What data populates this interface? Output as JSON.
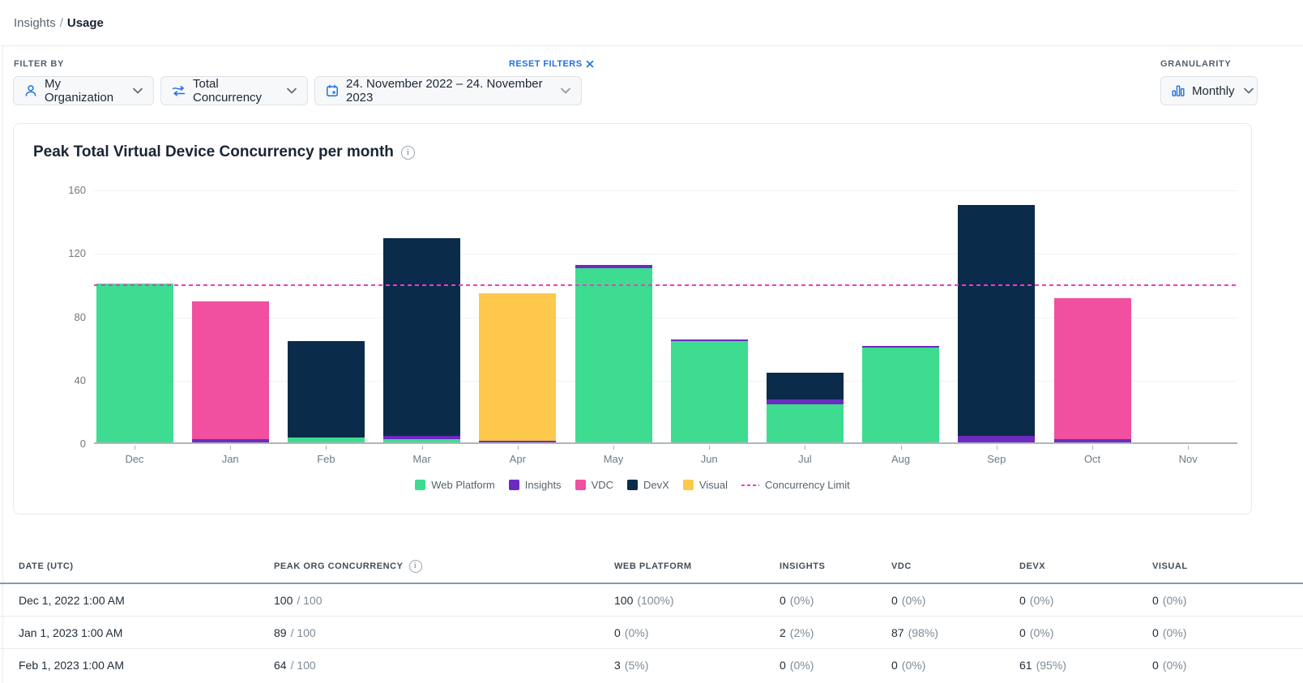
{
  "breadcrumb": {
    "parent": "Insights",
    "separator": "/",
    "current": "Usage"
  },
  "filters": {
    "label": "FILTER BY",
    "reset_label": "RESET FILTERS",
    "org": "My Organization",
    "metric": "Total Concurrency",
    "date_range": "24. November 2022 – 24. November 2023",
    "granularity_label": "GRANULARITY",
    "granularity_value": "Monthly"
  },
  "chart": {
    "title": "Peak Total Virtual Device Concurrency per month"
  },
  "chart_data": {
    "type": "bar",
    "stacked": true,
    "title": "Peak Total Virtual Device Concurrency per month",
    "categories": [
      "Dec",
      "Jan",
      "Feb",
      "Mar",
      "Apr",
      "May",
      "Jun",
      "Jul",
      "Aug",
      "Sep",
      "Oct",
      "Nov"
    ],
    "series": [
      {
        "name": "Web Platform",
        "color": "#3edc91",
        "values": [
          100,
          0,
          3,
          2,
          0,
          110,
          64,
          24,
          60,
          0,
          0,
          0
        ]
      },
      {
        "name": "Insights",
        "color": "#6d2ac1",
        "values": [
          0,
          2,
          0,
          2,
          1,
          2,
          1,
          3,
          1,
          4,
          2,
          0
        ]
      },
      {
        "name": "VDC",
        "color": "#f0509f",
        "values": [
          0,
          87,
          0,
          0,
          0,
          0,
          0,
          0,
          0,
          0,
          89,
          0
        ]
      },
      {
        "name": "DevX",
        "color": "#0b2b4b",
        "values": [
          0,
          0,
          61,
          125,
          0,
          0,
          0,
          17,
          0,
          146,
          0,
          0
        ]
      },
      {
        "name": "Visual",
        "color": "#fec84d",
        "values": [
          0,
          0,
          0,
          0,
          93,
          0,
          0,
          0,
          0,
          0,
          0,
          0
        ]
      }
    ],
    "limit_line": {
      "label": "Concurrency Limit",
      "value": 100,
      "color": "#ef3acb"
    },
    "ylim": [
      0,
      160
    ],
    "yticks": [
      0,
      40,
      80,
      120,
      160
    ],
    "grid": true,
    "legend_position": "bottom"
  },
  "table": {
    "headers": [
      "DATE (UTC)",
      "PEAK ORG CONCURRENCY",
      "WEB PLATFORM",
      "INSIGHTS",
      "VDC",
      "DEVX",
      "VISUAL"
    ],
    "rows": [
      {
        "date": "Dec 1, 2022 1:00 AM",
        "peak": "100",
        "limit": "/ 100",
        "cells": [
          [
            "100",
            "(100%)"
          ],
          [
            "0",
            "(0%)"
          ],
          [
            "0",
            "(0%)"
          ],
          [
            "0",
            "(0%)"
          ],
          [
            "0",
            "(0%)"
          ]
        ]
      },
      {
        "date": "Jan 1, 2023 1:00 AM",
        "peak": "89",
        "limit": "/ 100",
        "cells": [
          [
            "0",
            "(0%)"
          ],
          [
            "2",
            "(2%)"
          ],
          [
            "87",
            "(98%)"
          ],
          [
            "0",
            "(0%)"
          ],
          [
            "0",
            "(0%)"
          ]
        ]
      },
      {
        "date": "Feb 1, 2023 1:00 AM",
        "peak": "64",
        "limit": "/ 100",
        "cells": [
          [
            "3",
            "(5%)"
          ],
          [
            "0",
            "(0%)"
          ],
          [
            "0",
            "(0%)"
          ],
          [
            "61",
            "(95%)"
          ],
          [
            "0",
            "(0%)"
          ]
        ]
      }
    ]
  },
  "colors": {
    "accent_blue": "#1e71e0",
    "limit_magenta": "#ef3acb",
    "web_platform_green": "#3edc91",
    "insights_purple": "#6d2ac1",
    "vdc_pink": "#f0509f",
    "devx_navy": "#0b2b4b",
    "visual_yellow": "#fec84d"
  }
}
